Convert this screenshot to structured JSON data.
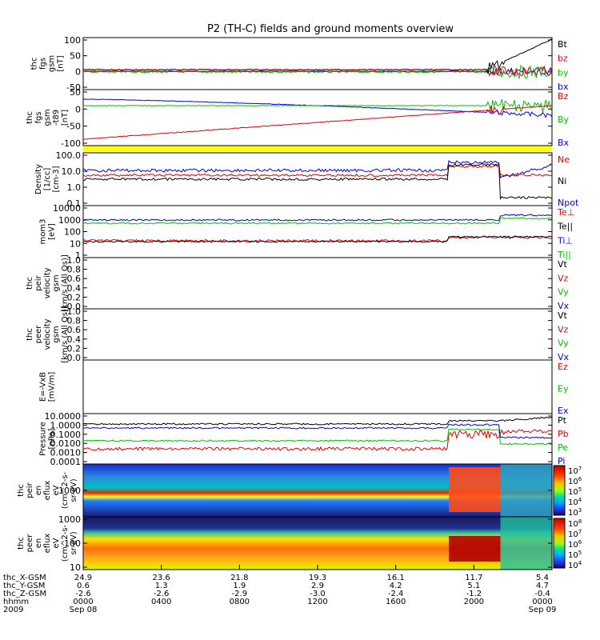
{
  "chart_data": {
    "type": "line",
    "title": "P2 (TH-C) fields and ground moments overview",
    "panels": [
      {
        "id": "fgs",
        "ylabel": [
          "thc",
          "fgs",
          "gsm",
          "[nT]"
        ],
        "ticks": [
          "100",
          "50",
          "0",
          "-50"
        ],
        "legend": [
          {
            "name": "Bt",
            "color": "#000000"
          },
          {
            "name": "bz",
            "color": "#e00000"
          },
          {
            "name": "by",
            "color": "#00c000"
          },
          {
            "name": "bx",
            "color": "#0000e0"
          }
        ]
      },
      {
        "id": "model",
        "ylabel": [
          "thc",
          "fgs",
          "gsm",
          "-t89",
          "[nT]"
        ],
        "ticks": [
          "50",
          "0",
          "-50",
          "-100"
        ],
        "legend": [
          {
            "name": "Bz",
            "color": "#e00000"
          },
          {
            "name": "By",
            "color": "#00c000"
          },
          {
            "name": "Bx",
            "color": "#0000e0"
          }
        ]
      },
      {
        "id": "density",
        "ylabel": [
          "Density",
          "[1/cc]",
          "[cm-3]"
        ],
        "ticks": [
          "100.0",
          "10.0",
          "1.0",
          "0.1"
        ],
        "legend": [
          {
            "name": "Ne",
            "color": "#e00000"
          },
          {
            "name": "Ni",
            "color": "#000000"
          },
          {
            "name": "Npot",
            "color": "#0000e0"
          }
        ]
      },
      {
        "id": "temperature",
        "ylabel": [
          "mom3",
          "[eV]"
        ],
        "ticks": [
          "10000",
          "1000",
          "100",
          "10",
          "1"
        ],
        "legend": [
          {
            "name": "Te⊥",
            "color": "#e00000"
          },
          {
            "name": "Te||",
            "color": "#000000"
          },
          {
            "name": "Ti⊥",
            "color": "#0000e0"
          },
          {
            "name": "Ti||",
            "color": "#00c000"
          }
        ]
      },
      {
        "id": "ion-velocity",
        "ylabel": [
          "thc",
          "peir",
          "velocity",
          "gsm",
          "[km/s (All Qs)]"
        ],
        "ticks": [
          "1.0",
          "0.8",
          "0.6",
          "0.4",
          "0.2",
          "0.0"
        ],
        "legend": [
          {
            "name": "Vt",
            "color": "#000000"
          },
          {
            "name": "Vz",
            "color": "#e00000"
          },
          {
            "name": "Vy",
            "color": "#00c000"
          },
          {
            "name": "Vx",
            "color": "#0000e0"
          }
        ]
      },
      {
        "id": "electron-velocity",
        "ylabel": [
          "thc",
          "peer",
          "velocity",
          "gsm",
          "[km/s (All Qs)]"
        ],
        "ticks": [
          "1.0",
          "0.8",
          "0.6",
          "0.4",
          "0.2",
          "0.0"
        ],
        "legend": [
          {
            "name": "Vt",
            "color": "#000000"
          },
          {
            "name": "Vz",
            "color": "#e00000"
          },
          {
            "name": "Vy",
            "color": "#00c000"
          },
          {
            "name": "Vx",
            "color": "#0000e0"
          }
        ]
      },
      {
        "id": "efield",
        "ylabel": [
          "E=-VxB",
          "[mV/m]"
        ],
        "ticks": [],
        "legend": [
          {
            "name": "Ez",
            "color": "#e00000"
          },
          {
            "name": "Ey",
            "color": "#00c000"
          },
          {
            "name": "Ex",
            "color": "#0000e0"
          }
        ]
      },
      {
        "id": "pressure",
        "ylabel": [
          "Pressure",
          "[nPa]"
        ],
        "ticks": [
          "10.0000",
          "1.0000",
          "0.1000",
          "0.0100",
          "0.0010",
          "0.0001"
        ],
        "legend": [
          {
            "name": "Pt",
            "color": "#000000"
          },
          {
            "name": "Pb",
            "color": "#e00000"
          },
          {
            "name": "Pe",
            "color": "#00c000"
          },
          {
            "name": "Pi",
            "color": "#0000e0"
          }
        ]
      },
      {
        "id": "ion-spectrogram",
        "ylabel": [
          "thc",
          "peir",
          "en",
          "eflux",
          "eV",
          "(cm^2-s-",
          "sr-eV)"
        ],
        "ticks": [
          "1000"
        ],
        "colorbar": [
          "10^7",
          "10^6",
          "10^5",
          "10^4",
          "10^3"
        ]
      },
      {
        "id": "electron-spectrogram",
        "ylabel": [
          "thc",
          "peer",
          "en",
          "eflux",
          "eV",
          "(cm^2-s-",
          "sr-eV)"
        ],
        "ticks": [
          "1000",
          "100",
          "10"
        ],
        "colorbar": [
          "10^8",
          "10^7",
          "10^6",
          "10^5",
          "10^4"
        ]
      }
    ],
    "x_axis": {
      "row_labels": [
        "thc_X-GSM",
        "thc_Y-GSM",
        "thc_Z-GSM",
        "hhmm",
        "2009"
      ],
      "columns": [
        {
          "x": "24.9",
          "y": "0.6",
          "z": "-2.6",
          "hhmm": "0000",
          "date": "Sep 08"
        },
        {
          "x": "23.6",
          "y": "1.3",
          "z": "-2.6",
          "hhmm": "0400",
          "date": ""
        },
        {
          "x": "21.8",
          "y": "1.9",
          "z": "-2.9",
          "hhmm": "0800",
          "date": ""
        },
        {
          "x": "19.3",
          "y": "2.9",
          "z": "-3.0",
          "hhmm": "1200",
          "date": ""
        },
        {
          "x": "16.1",
          "y": "4.2",
          "z": "-2.4",
          "hhmm": "1600",
          "date": ""
        },
        {
          "x": "11.7",
          "y": "5.1",
          "z": "-1.2",
          "hhmm": "2000",
          "date": ""
        },
        {
          "x": "5.4",
          "y": "4.7",
          "z": "-0.4",
          "hhmm": "0000",
          "date": "Sep 09"
        }
      ]
    },
    "colors": {
      "bar": "#ffff00",
      "black": "#000000",
      "red": "#e00000",
      "green": "#00c000",
      "blue": "#0000e0"
    }
  }
}
